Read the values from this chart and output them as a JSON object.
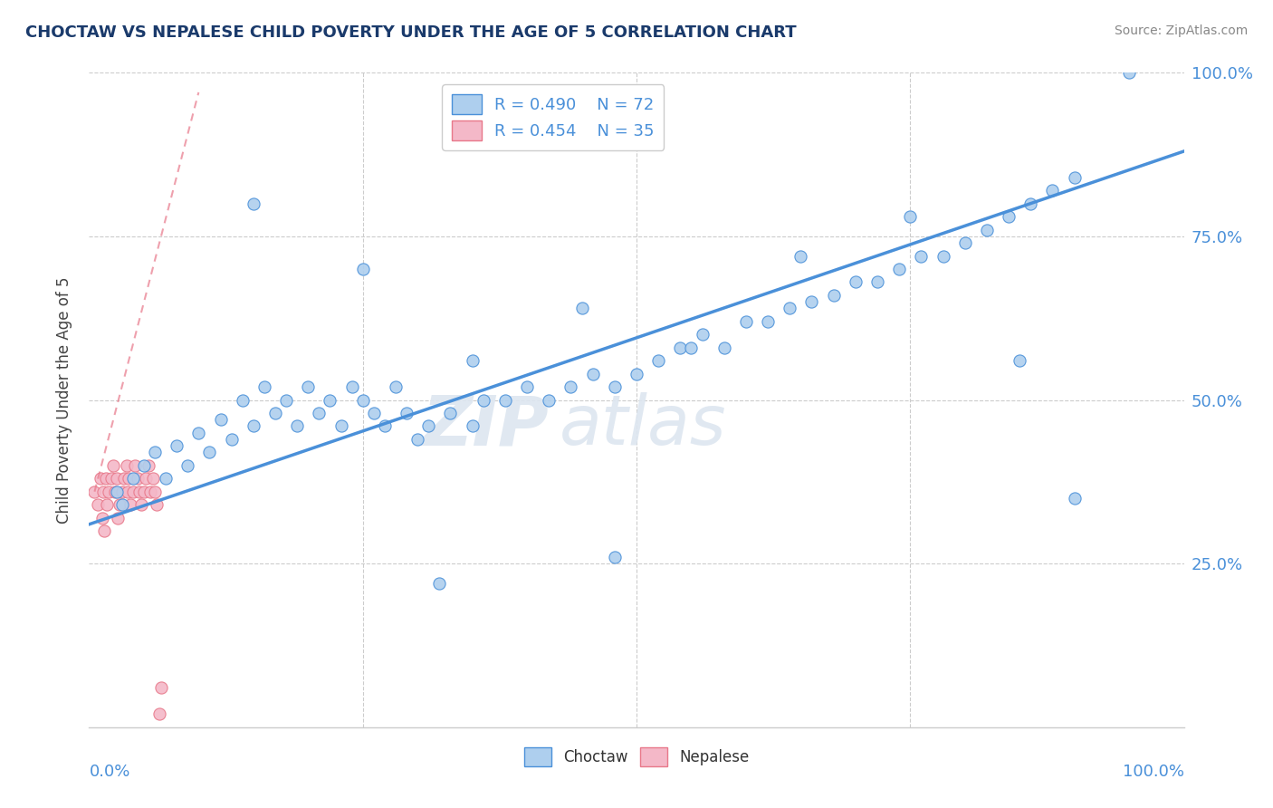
{
  "title": "CHOCTAW VS NEPALESE CHILD POVERTY UNDER THE AGE OF 5 CORRELATION CHART",
  "source": "Source: ZipAtlas.com",
  "ylabel": "Child Poverty Under the Age of 5",
  "xlim": [
    0,
    1
  ],
  "ylim": [
    0,
    1
  ],
  "ytick_values": [
    0,
    0.25,
    0.5,
    0.75,
    1.0
  ],
  "ytick_labels": [
    "",
    "25.0%",
    "50.0%",
    "75.0%",
    "100.0%"
  ],
  "legend_r_choctaw": "R = 0.490",
  "legend_n_choctaw": "N = 72",
  "legend_r_nepalese": "R = 0.454",
  "legend_n_nepalese": "N = 35",
  "choctaw_color": "#aecfee",
  "nepalese_color": "#f4b8c8",
  "trendline_choctaw_color": "#4a90d9",
  "trendline_nepalese_color": "#e8788a",
  "watermark_color": "#dde6f0",
  "background_color": "#ffffff",
  "choctaw_x": [
    0.025,
    0.03,
    0.04,
    0.05,
    0.06,
    0.07,
    0.08,
    0.09,
    0.1,
    0.11,
    0.12,
    0.13,
    0.14,
    0.15,
    0.16,
    0.17,
    0.18,
    0.19,
    0.2,
    0.21,
    0.22,
    0.23,
    0.24,
    0.25,
    0.26,
    0.27,
    0.28,
    0.29,
    0.3,
    0.31,
    0.33,
    0.35,
    0.36,
    0.38,
    0.4,
    0.42,
    0.44,
    0.46,
    0.48,
    0.5,
    0.52,
    0.54,
    0.56,
    0.58,
    0.6,
    0.62,
    0.64,
    0.66,
    0.68,
    0.7,
    0.72,
    0.74,
    0.76,
    0.78,
    0.8,
    0.82,
    0.84,
    0.86,
    0.88,
    0.9,
    0.15,
    0.25,
    0.35,
    0.45,
    0.55,
    0.65,
    0.75,
    0.85,
    0.9,
    0.95,
    0.32,
    0.48
  ],
  "choctaw_y": [
    0.36,
    0.34,
    0.38,
    0.4,
    0.42,
    0.38,
    0.43,
    0.4,
    0.45,
    0.42,
    0.47,
    0.44,
    0.5,
    0.46,
    0.52,
    0.48,
    0.5,
    0.46,
    0.52,
    0.48,
    0.5,
    0.46,
    0.52,
    0.5,
    0.48,
    0.46,
    0.52,
    0.48,
    0.44,
    0.46,
    0.48,
    0.46,
    0.5,
    0.5,
    0.52,
    0.5,
    0.52,
    0.54,
    0.52,
    0.54,
    0.56,
    0.58,
    0.6,
    0.58,
    0.62,
    0.62,
    0.64,
    0.65,
    0.66,
    0.68,
    0.68,
    0.7,
    0.72,
    0.72,
    0.74,
    0.76,
    0.78,
    0.8,
    0.82,
    0.84,
    0.8,
    0.7,
    0.56,
    0.64,
    0.58,
    0.72,
    0.78,
    0.56,
    0.35,
    1.0,
    0.22,
    0.26
  ],
  "nepalese_x": [
    0.005,
    0.008,
    0.01,
    0.012,
    0.013,
    0.014,
    0.015,
    0.016,
    0.018,
    0.02,
    0.022,
    0.024,
    0.025,
    0.026,
    0.028,
    0.03,
    0.032,
    0.034,
    0.035,
    0.036,
    0.038,
    0.04,
    0.042,
    0.044,
    0.046,
    0.048,
    0.05,
    0.052,
    0.054,
    0.056,
    0.058,
    0.06,
    0.062,
    0.064,
    0.066
  ],
  "nepalese_y": [
    0.36,
    0.34,
    0.38,
    0.32,
    0.36,
    0.3,
    0.38,
    0.34,
    0.36,
    0.38,
    0.4,
    0.36,
    0.38,
    0.32,
    0.34,
    0.36,
    0.38,
    0.4,
    0.36,
    0.38,
    0.34,
    0.36,
    0.4,
    0.38,
    0.36,
    0.34,
    0.36,
    0.38,
    0.4,
    0.36,
    0.38,
    0.36,
    0.34,
    0.02,
    0.06
  ],
  "choctaw_trendline_x0": 0.0,
  "choctaw_trendline_y0": 0.31,
  "choctaw_trendline_x1": 1.0,
  "choctaw_trendline_y1": 0.88,
  "nepalese_trendline_x0": 0.005,
  "nepalese_trendline_y0": 0.36,
  "nepalese_trendline_x1": 0.1,
  "nepalese_trendline_y1": 0.97
}
